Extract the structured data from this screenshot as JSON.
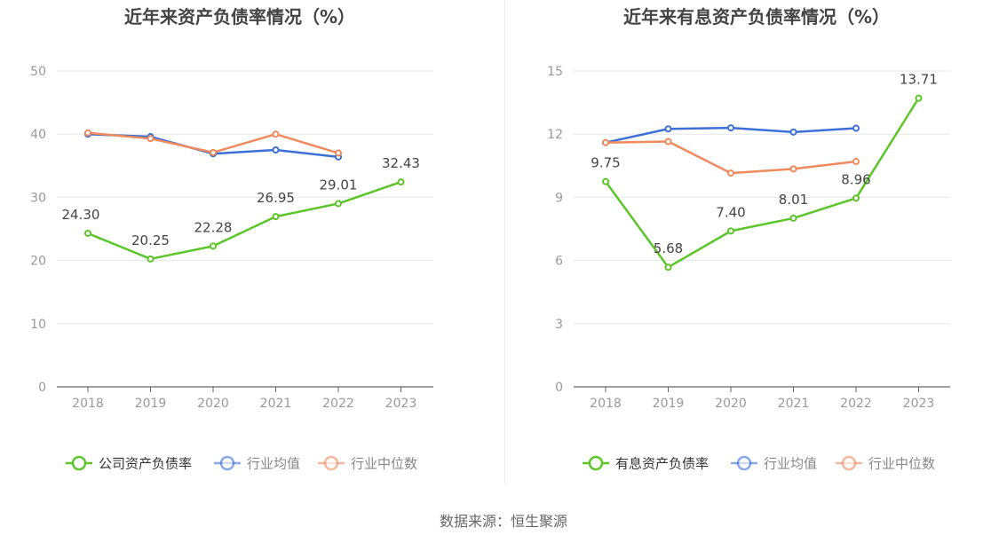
{
  "source_text": "数据来源：恒生聚源",
  "colors": {
    "company": "#5cc52a",
    "industry_avg": "#3d6fd8",
    "industry_median": "#f08a5d",
    "grid": "#e6e6e6",
    "axis": "#666666",
    "tick_text": "#999999",
    "title": "#444444"
  },
  "chart_data": [
    {
      "type": "line",
      "title": "近年来资产负债率情况（%）",
      "categories": [
        "2018",
        "2019",
        "2020",
        "2021",
        "2022",
        "2023"
      ],
      "y_ticks": [
        0,
        10,
        20,
        30,
        40,
        50
      ],
      "ylim": [
        0,
        50
      ],
      "grid": true,
      "legend_position": "bottom",
      "series": [
        {
          "name": "公司资产负债率",
          "color": "#5cc52a",
          "values": [
            24.3,
            20.25,
            22.28,
            26.95,
            29.01,
            32.43
          ],
          "data_labels": [
            "24.30",
            "20.25",
            "22.28",
            "26.95",
            "29.01",
            "32.43"
          ]
        },
        {
          "name": "行业均值",
          "color": "#3d6fd8",
          "values": [
            40.0,
            39.6,
            36.9,
            37.5,
            36.4,
            null
          ]
        },
        {
          "name": "行业中位数",
          "color": "#f08a5d",
          "values": [
            40.2,
            39.3,
            37.1,
            40.0,
            37.0,
            null
          ]
        }
      ]
    },
    {
      "type": "line",
      "title": "近年来有息资产负债率情况（%）",
      "categories": [
        "2018",
        "2019",
        "2020",
        "2021",
        "2022",
        "2023"
      ],
      "y_ticks": [
        0,
        3,
        6,
        9,
        12,
        15
      ],
      "ylim": [
        0,
        15
      ],
      "grid": true,
      "legend_position": "bottom",
      "series": [
        {
          "name": "有息资产负债率",
          "color": "#5cc52a",
          "values": [
            9.75,
            5.68,
            7.4,
            8.01,
            8.96,
            13.71
          ],
          "data_labels": [
            "9.75",
            "5.68",
            "7.40",
            "8.01",
            "8.96",
            "13.71"
          ]
        },
        {
          "name": "行业均值",
          "color": "#3d6fd8",
          "values": [
            11.6,
            12.25,
            12.3,
            12.1,
            12.28,
            null
          ]
        },
        {
          "name": "行业中位数",
          "color": "#f08a5d",
          "values": [
            11.6,
            11.65,
            10.15,
            10.35,
            10.7,
            null
          ]
        }
      ]
    }
  ]
}
